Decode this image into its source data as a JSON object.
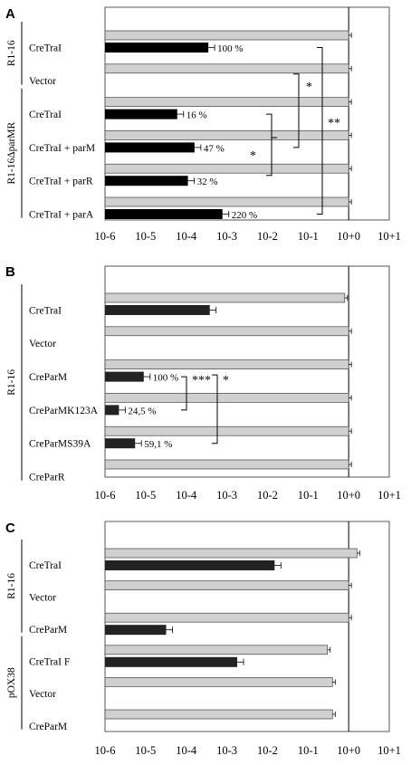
{
  "colors": {
    "gray_bar": "#d0d0d0",
    "black_bar": "#000000",
    "dark_bar": "#222222",
    "frame": "#555555"
  },
  "chart_data": [
    {
      "type": "bar",
      "orientation": "horizontal",
      "panel": "A",
      "x_scale": "log",
      "x_ticks": [
        "10-6",
        "10-5",
        "10-4",
        "10-3",
        "10-2",
        "10-1",
        "10+0",
        "10+1"
      ],
      "groups": [
        {
          "label": "R1-16",
          "categories": [
            "CreTraI",
            "Vector"
          ]
        },
        {
          "label": "R1-16ΔparMR",
          "categories": [
            "CreTraI",
            "CreTraI + parM",
            "CreTraI + parR",
            "CreTraI + parA"
          ]
        }
      ],
      "categories": [
        "CreTraI",
        "Vector",
        "CreTraI",
        "CreTraI + parM",
        "CreTraI + parR",
        "CreTraI + parA"
      ],
      "series": [
        {
          "values": [
            1,
            1,
            1,
            1,
            1,
            1
          ]
        },
        {
          "values": [
            0.00035,
            null,
            6e-05,
            0.00016,
            0.00011,
            0.00078
          ]
        }
      ],
      "bar_labels": [
        "100 %",
        "",
        "16 %",
        "47 %",
        "32 %",
        "220 %"
      ],
      "significance": [
        "*",
        "**",
        "*"
      ]
    },
    {
      "type": "bar",
      "orientation": "horizontal",
      "panel": "B",
      "x_scale": "log",
      "x_ticks": [
        "10-6",
        "10-5",
        "10-4",
        "10-3",
        "10-2",
        "10-1",
        "10+0",
        "10+1"
      ],
      "groups": [
        {
          "label": "R1-16",
          "categories": [
            "CreTraI",
            "Vector",
            "CreParM",
            "CreParMK123A",
            "CreParMS39A",
            "CreParR"
          ]
        }
      ],
      "categories": [
        "CreTraI",
        "Vector",
        "CreParM",
        "CreParMK123A",
        "CreParMS39A",
        "CreParR"
      ],
      "series": [
        {
          "values": [
            0.8,
            1,
            1,
            1,
            1,
            1
          ]
        },
        {
          "values": [
            0.00038,
            null,
            9e-06,
            2.2e-06,
            5.5e-06,
            null
          ]
        }
      ],
      "bar_labels": [
        "",
        "",
        "100 %",
        "24,5 %",
        "59,1 %",
        ""
      ],
      "significance": [
        "***",
        "*"
      ]
    },
    {
      "type": "bar",
      "orientation": "horizontal",
      "panel": "C",
      "x_scale": "log",
      "x_ticks": [
        "10-6",
        "10-5",
        "10-4",
        "10-3",
        "10-2",
        "10-1",
        "10+0",
        "10+1"
      ],
      "groups": [
        {
          "label": "R1-16",
          "categories": [
            "CreTraI",
            "Vector",
            "CreParM"
          ]
        },
        {
          "label": "pOX38",
          "categories": [
            "CreTraI F",
            "Vector",
            "CreParM"
          ]
        }
      ],
      "categories": [
        "CreTraI",
        "Vector",
        "CreParM",
        "CreTraI F",
        "Vector",
        "CreParM"
      ],
      "series": [
        {
          "values": [
            1.6,
            1,
            1,
            0.3,
            0.4,
            0.4
          ]
        },
        {
          "values": [
            0.015,
            null,
            3.2e-05,
            0.0018,
            null,
            null
          ]
        }
      ],
      "bar_labels": [
        "",
        "",
        "",
        "",
        "",
        ""
      ],
      "significance": []
    }
  ]
}
